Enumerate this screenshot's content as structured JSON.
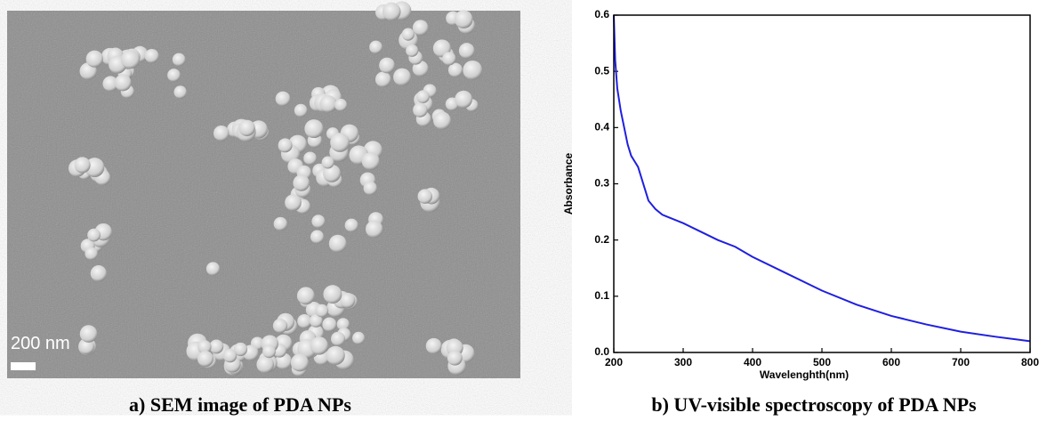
{
  "panel_a": {
    "caption": "a) SEM image of PDA NPs",
    "scale_bar_label": "200 nm"
  },
  "chart_data": {
    "type": "line",
    "caption": "b) UV-visible spectroscopy of PDA NPs",
    "x_label": "Wavelenghth(nm)",
    "y_label": "Absorbance",
    "x": [
      200,
      202,
      205,
      210,
      215,
      220,
      225,
      230,
      235,
      240,
      245,
      250,
      260,
      270,
      280,
      300,
      325,
      350,
      375,
      400,
      450,
      500,
      550,
      600,
      650,
      700,
      750,
      800
    ],
    "series": [
      {
        "color": "#1f1fe0",
        "values": [
          0.6,
          0.52,
          0.47,
          0.43,
          0.4,
          0.37,
          0.35,
          0.34,
          0.33,
          0.31,
          0.29,
          0.27,
          0.255,
          0.245,
          0.24,
          0.23,
          0.215,
          0.2,
          0.188,
          0.17,
          0.14,
          0.11,
          0.085,
          0.065,
          0.05,
          0.037,
          0.028,
          0.02
        ]
      }
    ],
    "xlim": [
      200,
      800
    ],
    "xticks": [
      200,
      300,
      400,
      500,
      600,
      700,
      800
    ],
    "ylim": [
      0,
      0.6
    ],
    "yticks": [
      {
        "value": 0,
        "label": "0.0"
      },
      0.1,
      0.2,
      0.3,
      0.4,
      0.5,
      0.6
    ]
  }
}
